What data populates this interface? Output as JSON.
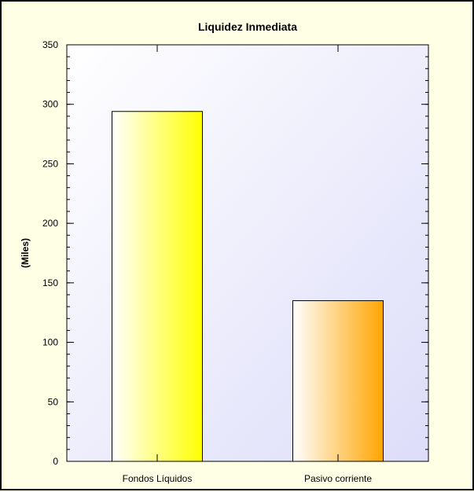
{
  "chart_data": {
    "type": "bar",
    "title": "Liquidez Inmediata",
    "xlabel": "",
    "ylabel": "(Miles)",
    "categories": [
      "Fondos Líquidos",
      "Pasivo corriente"
    ],
    "values": [
      294,
      135
    ],
    "ylim": [
      0,
      350
    ],
    "yticks": [
      0,
      50,
      100,
      150,
      200,
      250,
      300,
      350
    ],
    "y_minor_step": 10,
    "grid": false,
    "legend": "none",
    "colors": {
      "bar_fondos_liquidos": "#ffff00",
      "bar_pasivo_corriente": "#ffa500",
      "plot_background": "#ddddfa",
      "page_background": "#ffffe6"
    }
  }
}
